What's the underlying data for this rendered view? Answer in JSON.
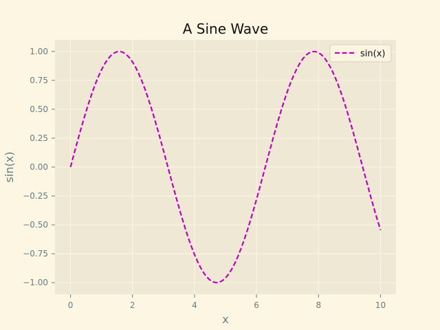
{
  "chart_data": {
    "type": "line",
    "title": "A Sine Wave",
    "xlabel": "x",
    "ylabel": "sin(x)",
    "xlim": [
      -0.5,
      10.5
    ],
    "ylim": [
      -1.1,
      1.1
    ],
    "x_ticks": [
      0,
      2,
      4,
      6,
      8,
      10
    ],
    "x_tick_labels": [
      "0",
      "2",
      "4",
      "6",
      "8",
      "10"
    ],
    "y_ticks": [
      -1.0,
      -0.75,
      -0.5,
      -0.25,
      0.0,
      0.25,
      0.5,
      0.75,
      1.0
    ],
    "y_tick_labels": [
      "−1.00",
      "−0.75",
      "−0.50",
      "−0.25",
      "0.00",
      "0.25",
      "0.50",
      "0.75",
      "1.00"
    ],
    "grid": true,
    "legend_position": "top-right",
    "series": [
      {
        "name": "sin(x)",
        "color": "#bf00bf",
        "linestyle": "dashed",
        "function": "sin",
        "x_range": [
          0,
          10
        ],
        "samples": 101
      }
    ]
  },
  "colors": {
    "figure_bg": "#fdf6e3",
    "axes_bg": "#eee8d5",
    "grid": "#fdf6e3",
    "tick_text": "#657b83"
  }
}
